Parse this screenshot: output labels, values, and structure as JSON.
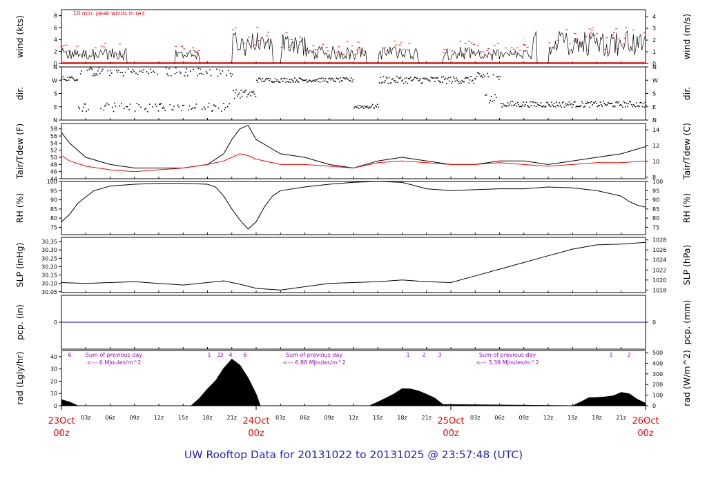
{
  "title": "UW Rooftop Data for 20131022  to  20131025 @ 23:57:48  (UTC)",
  "colors": {
    "black": "#000000",
    "red": "#ff0000",
    "blue": "#0000cc",
    "purple": "#9900cc",
    "title": "#2222cc"
  },
  "time_axis": {
    "minor_ticks": [
      "03z",
      "06z",
      "09z",
      "12z",
      "15z",
      "18z",
      "21z",
      "03z",
      "06z",
      "09z",
      "12z",
      "15z",
      "18z",
      "21z",
      "03z",
      "06z",
      "09z",
      "12z",
      "15z",
      "18z",
      "21z"
    ],
    "day_labels": [
      {
        "date": "23Oct",
        "hour": "00z"
      },
      {
        "date": "24Oct",
        "hour": "00z"
      },
      {
        "date": "25Oct",
        "hour": "00z"
      },
      {
        "date": "26Oct",
        "hour": "00z"
      }
    ]
  },
  "chart_data": [
    {
      "id": "wind",
      "type": "line",
      "ylabel": "wind (kts)",
      "ylabel_right": "wind (m/s)",
      "note": "10 min. peak winds in red",
      "yticks": [
        "0",
        "2",
        "4",
        "6",
        "8"
      ],
      "yticks_right": [
        "0",
        "1",
        "2",
        "3",
        "4"
      ],
      "ylim": [
        0,
        9
      ],
      "series": [
        {
          "color": "#000000"
        },
        {
          "color": "#ff0000"
        }
      ]
    },
    {
      "id": "dir",
      "type": "scatter",
      "ylabel": "dir.",
      "ylabel_right": "dir.",
      "yticks": [
        "N",
        "E",
        "S",
        "W",
        "N"
      ],
      "yticks_right": [
        "N",
        "E",
        "S",
        "W",
        "N"
      ],
      "ylim": [
        0,
        360
      ]
    },
    {
      "id": "temp",
      "type": "line",
      "ylabel": "Tair/Tdew (F)",
      "ylabel_right": "Tair/Tdew (C)",
      "yticks": [
        "44",
        "46",
        "48",
        "50",
        "52",
        "54",
        "56",
        "58"
      ],
      "yticks_right": [
        "8",
        "10",
        "12",
        "14"
      ],
      "ylim": [
        44,
        59.5
      ],
      "series": [
        {
          "color": "#000000",
          "x": [
            0,
            1,
            3,
            6,
            9,
            12,
            15,
            18,
            20,
            21,
            22,
            23,
            24,
            27,
            30,
            33,
            36,
            39,
            42,
            45,
            48,
            51,
            54,
            57,
            60,
            63,
            66,
            69,
            72
          ],
          "y": [
            57,
            54,
            50,
            48,
            47,
            47,
            47,
            48,
            51,
            55,
            58,
            59,
            55,
            51,
            50,
            48,
            47,
            49,
            50,
            49,
            48,
            48,
            49,
            49,
            48,
            49,
            50,
            51,
            53
          ]
        },
        {
          "color": "#ff0000",
          "x": [
            0,
            1,
            3,
            6,
            9,
            12,
            15,
            18,
            20,
            21,
            22,
            23,
            24,
            27,
            30,
            33,
            36,
            39,
            42,
            45,
            48,
            51,
            54,
            57,
            60,
            63,
            66,
            69,
            72
          ],
          "y": [
            50.5,
            49,
            47.5,
            46.5,
            46,
            46.5,
            47,
            48,
            49,
            50,
            51,
            50.5,
            49.5,
            48,
            48,
            47.5,
            47,
            48.5,
            49,
            48.5,
            48,
            48,
            48.5,
            48,
            47.5,
            48,
            48.5,
            48.5,
            49
          ]
        }
      ]
    },
    {
      "id": "rh",
      "type": "line",
      "ylabel": "RH (%)",
      "ylabel_right": "RH (%)",
      "yticks": [
        "75",
        "80",
        "85",
        "90",
        "95",
        "100"
      ],
      "yticks_right": [
        "75",
        "80",
        "85",
        "90",
        "95",
        "100"
      ],
      "ylim": [
        71,
        100
      ],
      "series": [
        {
          "color": "#000000",
          "x": [
            0,
            1,
            2,
            4,
            6,
            9,
            12,
            15,
            18,
            19,
            20,
            21,
            22,
            23,
            24,
            25,
            26,
            27,
            30,
            33,
            36,
            39,
            42,
            45,
            48,
            51,
            54,
            57,
            60,
            63,
            66,
            69,
            70,
            71,
            72
          ],
          "y": [
            78,
            82,
            88,
            95,
            97.5,
            98.5,
            99,
            99,
            98.5,
            97,
            92,
            85,
            79,
            74,
            78,
            86,
            92,
            95,
            97,
            98.5,
            99.5,
            100,
            99.5,
            96,
            95,
            95.5,
            96,
            96,
            97,
            96.5,
            95,
            92,
            89,
            87,
            86
          ]
        }
      ]
    },
    {
      "id": "slp",
      "type": "line",
      "ylabel": "SLP (inHg)",
      "ylabel_right": "SLP (hPa)",
      "yticks": [
        "30.05",
        "30.10",
        "30.15",
        "30.20",
        "30.25",
        "30.30",
        "30.35"
      ],
      "yticks_right": [
        "1018",
        "1020",
        "1022",
        "1024",
        "1026",
        "1028"
      ],
      "ylim": [
        30.045,
        30.375
      ],
      "series": [
        {
          "color": "#000000",
          "x": [
            0,
            3,
            6,
            9,
            12,
            15,
            18,
            20,
            22,
            24,
            27,
            30,
            33,
            36,
            39,
            42,
            45,
            48,
            51,
            54,
            57,
            60,
            63,
            66,
            69,
            72
          ],
          "y": [
            30.105,
            30.1,
            30.105,
            30.11,
            30.1,
            30.09,
            30.105,
            30.115,
            30.095,
            30.07,
            30.06,
            30.08,
            30.1,
            30.105,
            30.11,
            30.12,
            30.11,
            30.105,
            30.145,
            30.185,
            30.225,
            30.265,
            30.305,
            30.33,
            30.335,
            30.345
          ]
        }
      ]
    },
    {
      "id": "pcp",
      "type": "line",
      "ylabel": "pcp. (in)",
      "ylabel_right": "pcp. (mm)",
      "yticks": [
        "0"
      ],
      "yticks_right": [
        "0"
      ],
      "ylim": [
        -1,
        1
      ],
      "series": [
        {
          "color": "#0000cc",
          "x": [
            0,
            72
          ],
          "y": [
            0,
            0
          ]
        }
      ]
    },
    {
      "id": "rad",
      "type": "area",
      "ylabel": "rad (Lgly/hr)",
      "ylabel_right": "rad (W/m^2)",
      "yticks": [
        "0",
        "10",
        "20",
        "30",
        "40"
      ],
      "yticks_right": [
        "0",
        "100",
        "200",
        "300",
        "400",
        "500"
      ],
      "ylim": [
        0,
        45
      ],
      "annotations": [
        {
          "lines": [
            "Sum of previous day",
            "<--- 6 MJoules/m^2"
          ]
        },
        {
          "lines": [
            "Sum of previous day",
            "<--- 6.88 MJoules/m^2"
          ]
        },
        {
          "lines": [
            "Sum of previous day",
            "<--- 3.39 MJoules/m^2"
          ]
        }
      ],
      "markers": [
        "6",
        "1",
        "2",
        "3",
        "4",
        "6",
        "1",
        "2",
        "3",
        "1",
        "2"
      ],
      "series": [
        {
          "color": "#000000",
          "x": [
            0,
            1,
            2,
            16,
            17,
            18,
            19,
            20,
            21,
            22,
            23,
            24,
            24.5,
            38,
            39,
            40,
            41,
            42,
            43,
            44,
            45,
            46,
            47,
            63,
            64,
            65,
            66,
            67,
            68,
            69,
            70,
            71,
            72
          ],
          "y": [
            5,
            3,
            0,
            0,
            5,
            13,
            21,
            30,
            38,
            33,
            22,
            10,
            0,
            0,
            3,
            7,
            10,
            13,
            14,
            13,
            10,
            6,
            1,
            0,
            3,
            6,
            7,
            8,
            9,
            10,
            9,
            5,
            2
          ]
        }
      ]
    }
  ]
}
